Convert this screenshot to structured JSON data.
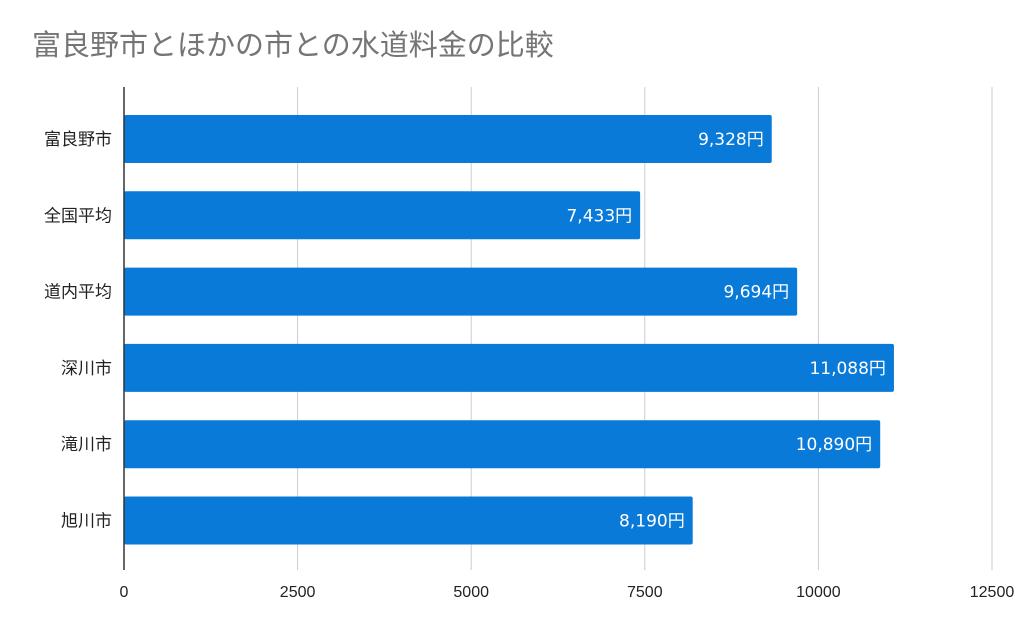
{
  "chart_data": {
    "type": "bar",
    "orientation": "horizontal",
    "title": "富良野市とほかの市との水道料金の比較",
    "categories": [
      "富良野市",
      "全国平均",
      "道内平均",
      "深川市",
      "滝川市",
      "旭川市"
    ],
    "values": [
      9328,
      7433,
      9694,
      11088,
      10890,
      8190
    ],
    "data_labels": [
      "9,328円",
      "7,433円",
      "9,694円",
      "11,088円",
      "10,890円",
      "8,190円"
    ],
    "x_ticks": [
      "0",
      "2500",
      "5000",
      "7500",
      "10000",
      "12500"
    ],
    "xlim": [
      0,
      12500
    ],
    "grid": true,
    "legend": "none",
    "bar_color": "#0a7ad8",
    "grid_color": "#cccccc",
    "axis_color": "#333333"
  }
}
